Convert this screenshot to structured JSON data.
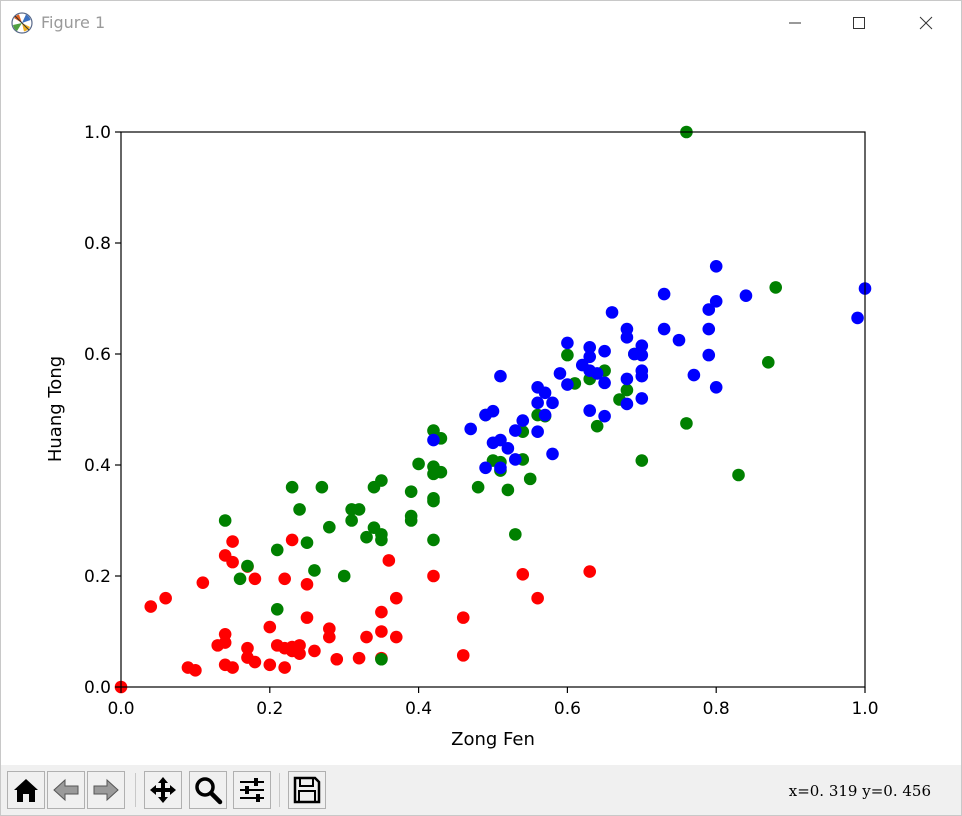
{
  "window": {
    "title": "Figure 1",
    "icon": "matplotlib-icon"
  },
  "controls": {
    "minimize": "minimize-icon",
    "maximize": "maximize-icon",
    "close": "close-icon"
  },
  "toolbar": {
    "buttons": [
      {
        "name": "home",
        "icon": "home-icon"
      },
      {
        "name": "back",
        "icon": "back-arrow-icon"
      },
      {
        "name": "forward",
        "icon": "forward-arrow-icon"
      },
      {
        "name": "pan",
        "icon": "move-icon"
      },
      {
        "name": "zoom",
        "icon": "zoom-icon"
      },
      {
        "name": "configure",
        "icon": "sliders-icon"
      },
      {
        "name": "save",
        "icon": "save-icon"
      }
    ],
    "coords": "x=0. 319  y=0. 456"
  },
  "chart_data": {
    "type": "scatter",
    "title": "",
    "xlabel": "Zong Fen",
    "ylabel": "Huang Tong",
    "xlim": [
      0,
      1
    ],
    "ylim": [
      0,
      1
    ],
    "xticks": [
      "0.0",
      "0.2",
      "0.4",
      "0.6",
      "0.8",
      "1.0"
    ],
    "yticks": [
      "0.0",
      "0.2",
      "0.4",
      "0.6",
      "0.8",
      "1.0"
    ],
    "grid": false,
    "series": [
      {
        "color": "#ff0000",
        "points": [
          [
            0.0,
            0.0
          ],
          [
            0.04,
            0.145
          ],
          [
            0.06,
            0.16
          ],
          [
            0.09,
            0.035
          ],
          [
            0.1,
            0.03
          ],
          [
            0.11,
            0.188
          ],
          [
            0.13,
            0.075
          ],
          [
            0.14,
            0.095
          ],
          [
            0.14,
            0.08
          ],
          [
            0.14,
            0.04
          ],
          [
            0.15,
            0.035
          ],
          [
            0.14,
            0.237
          ],
          [
            0.15,
            0.262
          ],
          [
            0.15,
            0.225
          ],
          [
            0.17,
            0.217
          ],
          [
            0.17,
            0.07
          ],
          [
            0.17,
            0.053
          ],
          [
            0.18,
            0.045
          ],
          [
            0.18,
            0.195
          ],
          [
            0.2,
            0.108
          ],
          [
            0.2,
            0.04
          ],
          [
            0.21,
            0.075
          ],
          [
            0.22,
            0.07
          ],
          [
            0.22,
            0.035
          ],
          [
            0.22,
            0.195
          ],
          [
            0.23,
            0.265
          ],
          [
            0.23,
            0.072
          ],
          [
            0.23,
            0.065
          ],
          [
            0.24,
            0.075
          ],
          [
            0.24,
            0.06
          ],
          [
            0.25,
            0.185
          ],
          [
            0.25,
            0.125
          ],
          [
            0.26,
            0.065
          ],
          [
            0.28,
            0.105
          ],
          [
            0.28,
            0.09
          ],
          [
            0.29,
            0.05
          ],
          [
            0.32,
            0.052
          ],
          [
            0.33,
            0.09
          ],
          [
            0.35,
            0.135
          ],
          [
            0.35,
            0.1
          ],
          [
            0.35,
            0.052
          ],
          [
            0.36,
            0.228
          ],
          [
            0.37,
            0.16
          ],
          [
            0.37,
            0.09
          ],
          [
            0.42,
            0.2
          ],
          [
            0.46,
            0.125
          ],
          [
            0.46,
            0.057
          ],
          [
            0.54,
            0.203
          ],
          [
            0.56,
            0.16
          ],
          [
            0.63,
            0.208
          ]
        ]
      },
      {
        "color": "#008000",
        "points": [
          [
            0.14,
            0.3
          ],
          [
            0.16,
            0.195
          ],
          [
            0.17,
            0.218
          ],
          [
            0.21,
            0.247
          ],
          [
            0.21,
            0.14
          ],
          [
            0.23,
            0.36
          ],
          [
            0.24,
            0.32
          ],
          [
            0.25,
            0.26
          ],
          [
            0.26,
            0.21
          ],
          [
            0.27,
            0.36
          ],
          [
            0.28,
            0.288
          ],
          [
            0.3,
            0.2
          ],
          [
            0.31,
            0.32
          ],
          [
            0.31,
            0.3
          ],
          [
            0.32,
            0.32
          ],
          [
            0.33,
            0.27
          ],
          [
            0.34,
            0.36
          ],
          [
            0.34,
            0.287
          ],
          [
            0.35,
            0.275
          ],
          [
            0.35,
            0.265
          ],
          [
            0.35,
            0.372
          ],
          [
            0.35,
            0.05
          ],
          [
            0.39,
            0.308
          ],
          [
            0.39,
            0.3
          ],
          [
            0.39,
            0.352
          ],
          [
            0.4,
            0.402
          ],
          [
            0.42,
            0.462
          ],
          [
            0.42,
            0.397
          ],
          [
            0.42,
            0.384
          ],
          [
            0.42,
            0.34
          ],
          [
            0.42,
            0.335
          ],
          [
            0.42,
            0.265
          ],
          [
            0.43,
            0.448
          ],
          [
            0.43,
            0.387
          ],
          [
            0.48,
            0.36
          ],
          [
            0.49,
            0.49
          ],
          [
            0.5,
            0.408
          ],
          [
            0.51,
            0.405
          ],
          [
            0.51,
            0.39
          ],
          [
            0.52,
            0.355
          ],
          [
            0.53,
            0.275
          ],
          [
            0.54,
            0.46
          ],
          [
            0.54,
            0.41
          ],
          [
            0.55,
            0.375
          ],
          [
            0.56,
            0.49
          ],
          [
            0.57,
            0.488
          ],
          [
            0.6,
            0.598
          ],
          [
            0.61,
            0.547
          ],
          [
            0.63,
            0.555
          ],
          [
            0.64,
            0.47
          ],
          [
            0.65,
            0.57
          ],
          [
            0.67,
            0.518
          ],
          [
            0.68,
            0.535
          ],
          [
            0.69,
            0.6
          ],
          [
            0.7,
            0.408
          ],
          [
            0.76,
            0.475
          ],
          [
            0.76,
            1.0
          ],
          [
            0.83,
            0.382
          ],
          [
            0.87,
            0.585
          ],
          [
            0.88,
            0.72
          ]
        ]
      },
      {
        "color": "#0000ff",
        "points": [
          [
            0.42,
            0.445
          ],
          [
            0.47,
            0.465
          ],
          [
            0.49,
            0.395
          ],
          [
            0.49,
            0.49
          ],
          [
            0.5,
            0.497
          ],
          [
            0.5,
            0.44
          ],
          [
            0.51,
            0.56
          ],
          [
            0.51,
            0.445
          ],
          [
            0.51,
            0.395
          ],
          [
            0.52,
            0.43
          ],
          [
            0.53,
            0.462
          ],
          [
            0.53,
            0.41
          ],
          [
            0.54,
            0.48
          ],
          [
            0.56,
            0.54
          ],
          [
            0.56,
            0.512
          ],
          [
            0.56,
            0.46
          ],
          [
            0.57,
            0.53
          ],
          [
            0.57,
            0.49
          ],
          [
            0.58,
            0.512
          ],
          [
            0.58,
            0.42
          ],
          [
            0.59,
            0.565
          ],
          [
            0.6,
            0.62
          ],
          [
            0.6,
            0.545
          ],
          [
            0.62,
            0.58
          ],
          [
            0.63,
            0.612
          ],
          [
            0.63,
            0.595
          ],
          [
            0.63,
            0.57
          ],
          [
            0.63,
            0.498
          ],
          [
            0.64,
            0.565
          ],
          [
            0.65,
            0.605
          ],
          [
            0.65,
            0.548
          ],
          [
            0.65,
            0.488
          ],
          [
            0.66,
            0.675
          ],
          [
            0.68,
            0.645
          ],
          [
            0.68,
            0.63
          ],
          [
            0.68,
            0.555
          ],
          [
            0.68,
            0.51
          ],
          [
            0.69,
            0.6
          ],
          [
            0.7,
            0.615
          ],
          [
            0.7,
            0.598
          ],
          [
            0.7,
            0.57
          ],
          [
            0.7,
            0.56
          ],
          [
            0.7,
            0.52
          ],
          [
            0.73,
            0.645
          ],
          [
            0.73,
            0.708
          ],
          [
            0.75,
            0.625
          ],
          [
            0.77,
            0.562
          ],
          [
            0.79,
            0.68
          ],
          [
            0.79,
            0.598
          ],
          [
            0.79,
            0.645
          ],
          [
            0.8,
            0.695
          ],
          [
            0.8,
            0.758
          ],
          [
            0.8,
            0.54
          ],
          [
            0.84,
            0.705
          ],
          [
            0.99,
            0.665
          ],
          [
            1.0,
            0.718
          ]
        ]
      }
    ]
  }
}
